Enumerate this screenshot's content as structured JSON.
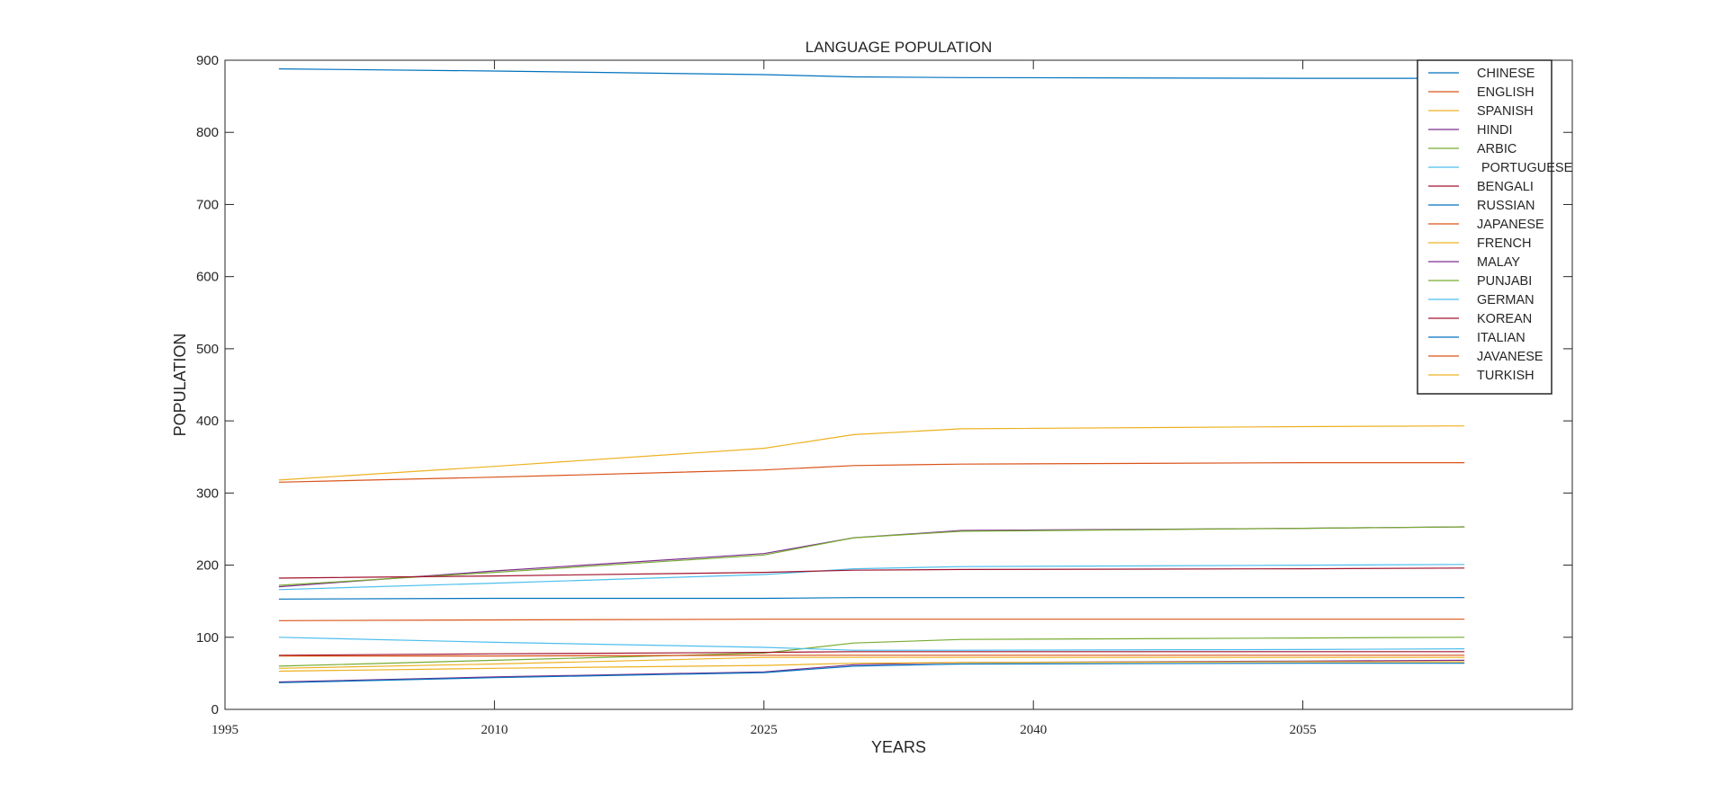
{
  "chart_data": {
    "type": "line",
    "title": "LANGUAGE POPULATION",
    "xlabel": "YEARS",
    "ylabel": "POPULATION",
    "xlim": [
      1995,
      2070
    ],
    "ylim": [
      0,
      900
    ],
    "x_ticks": [
      "1995",
      "2010",
      "2025",
      "2040",
      "2055"
    ],
    "y_ticks": [
      "0",
      "100",
      "200",
      "300",
      "400",
      "500",
      "600",
      "700",
      "800",
      "900"
    ],
    "grid": false,
    "legend_position": "top-right",
    "x": [
      1998,
      2010,
      2025,
      2030,
      2036,
      2055,
      2064
    ],
    "series": [
      {
        "name": "CHINESE",
        "color": "#0072BD",
        "values": [
          888,
          885,
          880,
          877,
          876,
          875,
          875
        ]
      },
      {
        "name": "ENGLISH",
        "color": "#D95319",
        "values": [
          315,
          322,
          332,
          338,
          340,
          342,
          342
        ]
      },
      {
        "name": "SPANISH",
        "color": "#EDB120",
        "values": [
          318,
          337,
          362,
          381,
          389,
          392,
          393
        ]
      },
      {
        "name": "HINDI",
        "color": "#7E2F8E",
        "values": [
          170,
          192,
          216,
          238,
          248,
          251,
          253
        ]
      },
      {
        "name": "ARBIC",
        "color": "#77AC30",
        "values": [
          172,
          190,
          214,
          238,
          247,
          251,
          253
        ]
      },
      {
        "name": "PORTUGUESE",
        "color": "#4DBEEE",
        "values": [
          166,
          175,
          187,
          195,
          198,
          200,
          201
        ]
      },
      {
        "name": "BENGALI",
        "color": "#A2142F",
        "values": [
          182,
          185,
          190,
          193,
          194,
          195,
          196
        ]
      },
      {
        "name": "RUSSIAN",
        "color": "#0072BD",
        "values": [
          153,
          154,
          154,
          155,
          155,
          155,
          155
        ]
      },
      {
        "name": "JAPANESE",
        "color": "#D95319",
        "values": [
          123,
          124,
          125,
          125,
          125,
          125,
          125
        ]
      },
      {
        "name": "FRENCH",
        "color": "#EDB120",
        "values": [
          57,
          63,
          72,
          72,
          72,
          72,
          72
        ]
      },
      {
        "name": "MALAY",
        "color": "#7E2F8E",
        "values": [
          38,
          45,
          52,
          62,
          65,
          67,
          68
        ]
      },
      {
        "name": "PUNJABI",
        "color": "#77AC30",
        "values": [
          60,
          68,
          78,
          92,
          97,
          99,
          100
        ]
      },
      {
        "name": "GERMAN",
        "color": "#4DBEEE",
        "values": [
          100,
          93,
          86,
          82,
          82,
          83,
          84
        ]
      },
      {
        "name": "KOREAN",
        "color": "#A2142F",
        "values": [
          75,
          77,
          79,
          80,
          80,
          80,
          80
        ]
      },
      {
        "name": "ITALIAN",
        "color": "#0072BD",
        "values": [
          37,
          44,
          51,
          60,
          63,
          64,
          64
        ]
      },
      {
        "name": "JAVANESE",
        "color": "#D95319",
        "values": [
          74,
          74,
          75,
          75,
          75,
          75,
          75
        ]
      },
      {
        "name": "TURKISH",
        "color": "#EDB120",
        "values": [
          53,
          57,
          61,
          64,
          65,
          66,
          66
        ]
      }
    ]
  }
}
